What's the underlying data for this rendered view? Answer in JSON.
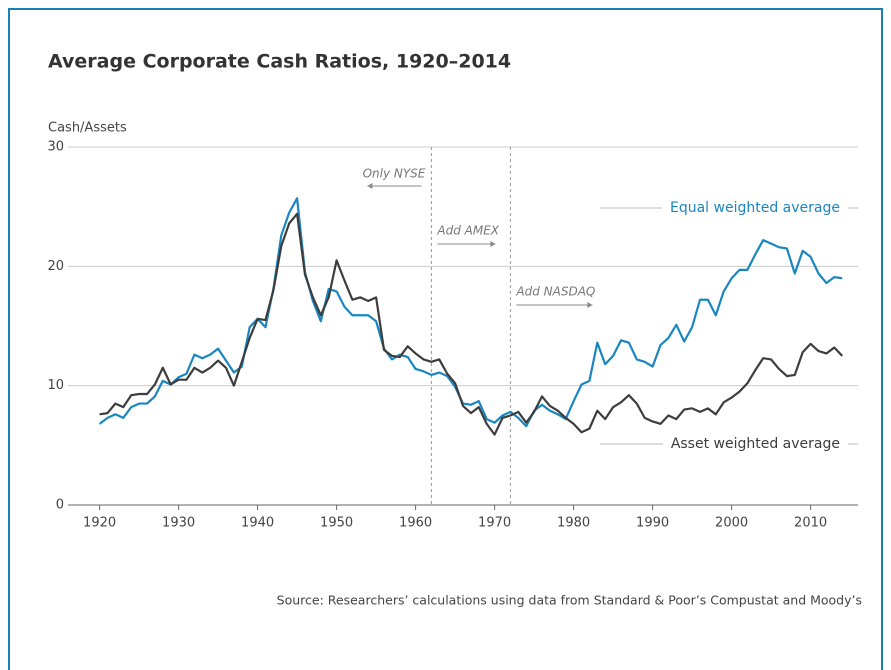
{
  "chart_data": {
    "type": "line",
    "title": "Average Corporate Cash Ratios, 1920–2014",
    "y_label": "Cash/Assets",
    "source": "Source: Researchers’ calculations using data from Standard & Poor’s Compustat and Moody’s",
    "x": [
      1920,
      1921,
      1922,
      1923,
      1924,
      1925,
      1926,
      1927,
      1928,
      1929,
      1930,
      1931,
      1932,
      1933,
      1934,
      1935,
      1936,
      1937,
      1938,
      1939,
      1940,
      1941,
      1942,
      1943,
      1944,
      1945,
      1946,
      1947,
      1948,
      1949,
      1950,
      1951,
      1952,
      1953,
      1954,
      1955,
      1956,
      1957,
      1958,
      1959,
      1960,
      1961,
      1962,
      1963,
      1964,
      1965,
      1966,
      1967,
      1968,
      1969,
      1970,
      1971,
      1972,
      1973,
      1974,
      1975,
      1976,
      1977,
      1978,
      1979,
      1980,
      1981,
      1982,
      1983,
      1984,
      1985,
      1986,
      1987,
      1988,
      1989,
      1990,
      1991,
      1992,
      1993,
      1994,
      1995,
      1996,
      1997,
      1998,
      1999,
      2000,
      2001,
      2002,
      2003,
      2004,
      2005,
      2006,
      2007,
      2008,
      2009,
      2010,
      2011,
      2012,
      2013,
      2014
    ],
    "series": [
      {
        "name": "Equal weighted average",
        "color": "#1a86c0",
        "values": [
          6.8,
          7.3,
          7.6,
          7.3,
          8.2,
          8.5,
          8.5,
          9.1,
          10.4,
          10.1,
          10.7,
          11.0,
          12.6,
          12.3,
          12.6,
          13.1,
          12.1,
          11.1,
          11.6,
          14.9,
          15.6,
          14.9,
          18.1,
          22.6,
          24.5,
          25.7,
          19.5,
          17.1,
          15.4,
          18.1,
          17.9,
          16.6,
          15.9,
          15.9,
          15.9,
          15.4,
          13.1,
          12.2,
          12.6,
          12.4,
          11.4,
          11.2,
          10.9,
          11.1,
          10.8,
          9.9,
          8.5,
          8.4,
          8.7,
          7.2,
          6.9,
          7.5,
          7.8,
          7.3,
          6.6,
          7.9,
          8.4,
          7.9,
          7.6,
          7.2,
          8.7,
          10.1,
          10.4,
          13.6,
          11.8,
          12.5,
          13.8,
          13.6,
          12.2,
          12.0,
          11.6,
          13.4,
          14.0,
          15.1,
          13.7,
          14.9,
          17.2,
          17.2,
          15.9,
          17.9,
          19.0,
          19.7,
          19.7,
          21.0,
          22.2,
          21.9,
          21.6,
          21.5,
          19.4,
          21.3,
          20.8,
          19.4,
          18.6,
          19.1,
          19.0
        ]
      },
      {
        "name": "Asset weighted average",
        "color": "#3d3d3d",
        "values": [
          7.6,
          7.7,
          8.5,
          8.2,
          9.2,
          9.3,
          9.3,
          10.1,
          11.5,
          10.1,
          10.5,
          10.5,
          11.5,
          11.1,
          11.5,
          12.1,
          11.5,
          10.0,
          12.0,
          14.0,
          15.6,
          15.5,
          18.0,
          21.7,
          23.6,
          24.4,
          19.3,
          17.4,
          15.9,
          17.4,
          20.5,
          18.8,
          17.2,
          17.4,
          17.1,
          17.4,
          13.0,
          12.5,
          12.4,
          13.3,
          12.7,
          12.2,
          12.0,
          12.2,
          11.0,
          10.2,
          8.3,
          7.7,
          8.2,
          6.8,
          5.9,
          7.3,
          7.5,
          7.8,
          6.9,
          7.8,
          9.1,
          8.3,
          7.9,
          7.3,
          6.8,
          6.1,
          6.4,
          7.9,
          7.2,
          8.2,
          8.6,
          9.2,
          8.5,
          7.3,
          7.0,
          6.8,
          7.5,
          7.2,
          8.0,
          8.1,
          7.8,
          8.1,
          7.6,
          8.6,
          9.0,
          9.5,
          10.2,
          11.3,
          12.3,
          12.2,
          11.4,
          10.8,
          10.9,
          12.8,
          13.5,
          12.9,
          12.7,
          13.2,
          12.5
        ]
      }
    ],
    "xlim": [
      1916,
      2016
    ],
    "xticks": [
      1920,
      1930,
      1940,
      1950,
      1960,
      1970,
      1980,
      1990,
      2000,
      2010
    ],
    "ylim": [
      0,
      30
    ],
    "yticks": [
      0,
      10,
      20,
      30
    ],
    "grid": true,
    "vlines": [
      1962,
      1972
    ],
    "annotations": [
      "Only NYSE",
      "Add AMEX",
      "Add NASDAQ"
    ]
  }
}
